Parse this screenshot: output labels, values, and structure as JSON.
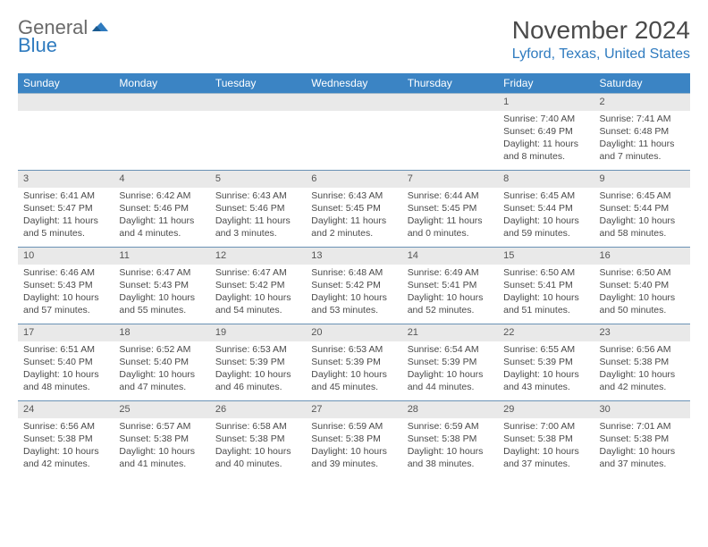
{
  "logo": {
    "general": "General",
    "blue": "Blue"
  },
  "title": "November 2024",
  "subtitle": "Lyford, Texas, United States",
  "colors": {
    "header_bg": "#3b84c4",
    "header_text": "#ffffff",
    "brand_blue": "#2f7bbf",
    "daynum_bg": "#e9e9e9",
    "border": "#6a92b5",
    "text": "#4a4a4a"
  },
  "day_headers": [
    "Sunday",
    "Monday",
    "Tuesday",
    "Wednesday",
    "Thursday",
    "Friday",
    "Saturday"
  ],
  "weeks": [
    [
      {
        "empty": true
      },
      {
        "empty": true
      },
      {
        "empty": true
      },
      {
        "empty": true
      },
      {
        "empty": true
      },
      {
        "num": "1",
        "sunrise": "Sunrise: 7:40 AM",
        "sunset": "Sunset: 6:49 PM",
        "daylight": "Daylight: 11 hours and 8 minutes."
      },
      {
        "num": "2",
        "sunrise": "Sunrise: 7:41 AM",
        "sunset": "Sunset: 6:48 PM",
        "daylight": "Daylight: 11 hours and 7 minutes."
      }
    ],
    [
      {
        "num": "3",
        "sunrise": "Sunrise: 6:41 AM",
        "sunset": "Sunset: 5:47 PM",
        "daylight": "Daylight: 11 hours and 5 minutes."
      },
      {
        "num": "4",
        "sunrise": "Sunrise: 6:42 AM",
        "sunset": "Sunset: 5:46 PM",
        "daylight": "Daylight: 11 hours and 4 minutes."
      },
      {
        "num": "5",
        "sunrise": "Sunrise: 6:43 AM",
        "sunset": "Sunset: 5:46 PM",
        "daylight": "Daylight: 11 hours and 3 minutes."
      },
      {
        "num": "6",
        "sunrise": "Sunrise: 6:43 AM",
        "sunset": "Sunset: 5:45 PM",
        "daylight": "Daylight: 11 hours and 2 minutes."
      },
      {
        "num": "7",
        "sunrise": "Sunrise: 6:44 AM",
        "sunset": "Sunset: 5:45 PM",
        "daylight": "Daylight: 11 hours and 0 minutes."
      },
      {
        "num": "8",
        "sunrise": "Sunrise: 6:45 AM",
        "sunset": "Sunset: 5:44 PM",
        "daylight": "Daylight: 10 hours and 59 minutes."
      },
      {
        "num": "9",
        "sunrise": "Sunrise: 6:45 AM",
        "sunset": "Sunset: 5:44 PM",
        "daylight": "Daylight: 10 hours and 58 minutes."
      }
    ],
    [
      {
        "num": "10",
        "sunrise": "Sunrise: 6:46 AM",
        "sunset": "Sunset: 5:43 PM",
        "daylight": "Daylight: 10 hours and 57 minutes."
      },
      {
        "num": "11",
        "sunrise": "Sunrise: 6:47 AM",
        "sunset": "Sunset: 5:43 PM",
        "daylight": "Daylight: 10 hours and 55 minutes."
      },
      {
        "num": "12",
        "sunrise": "Sunrise: 6:47 AM",
        "sunset": "Sunset: 5:42 PM",
        "daylight": "Daylight: 10 hours and 54 minutes."
      },
      {
        "num": "13",
        "sunrise": "Sunrise: 6:48 AM",
        "sunset": "Sunset: 5:42 PM",
        "daylight": "Daylight: 10 hours and 53 minutes."
      },
      {
        "num": "14",
        "sunrise": "Sunrise: 6:49 AM",
        "sunset": "Sunset: 5:41 PM",
        "daylight": "Daylight: 10 hours and 52 minutes."
      },
      {
        "num": "15",
        "sunrise": "Sunrise: 6:50 AM",
        "sunset": "Sunset: 5:41 PM",
        "daylight": "Daylight: 10 hours and 51 minutes."
      },
      {
        "num": "16",
        "sunrise": "Sunrise: 6:50 AM",
        "sunset": "Sunset: 5:40 PM",
        "daylight": "Daylight: 10 hours and 50 minutes."
      }
    ],
    [
      {
        "num": "17",
        "sunrise": "Sunrise: 6:51 AM",
        "sunset": "Sunset: 5:40 PM",
        "daylight": "Daylight: 10 hours and 48 minutes."
      },
      {
        "num": "18",
        "sunrise": "Sunrise: 6:52 AM",
        "sunset": "Sunset: 5:40 PM",
        "daylight": "Daylight: 10 hours and 47 minutes."
      },
      {
        "num": "19",
        "sunrise": "Sunrise: 6:53 AM",
        "sunset": "Sunset: 5:39 PM",
        "daylight": "Daylight: 10 hours and 46 minutes."
      },
      {
        "num": "20",
        "sunrise": "Sunrise: 6:53 AM",
        "sunset": "Sunset: 5:39 PM",
        "daylight": "Daylight: 10 hours and 45 minutes."
      },
      {
        "num": "21",
        "sunrise": "Sunrise: 6:54 AM",
        "sunset": "Sunset: 5:39 PM",
        "daylight": "Daylight: 10 hours and 44 minutes."
      },
      {
        "num": "22",
        "sunrise": "Sunrise: 6:55 AM",
        "sunset": "Sunset: 5:39 PM",
        "daylight": "Daylight: 10 hours and 43 minutes."
      },
      {
        "num": "23",
        "sunrise": "Sunrise: 6:56 AM",
        "sunset": "Sunset: 5:38 PM",
        "daylight": "Daylight: 10 hours and 42 minutes."
      }
    ],
    [
      {
        "num": "24",
        "sunrise": "Sunrise: 6:56 AM",
        "sunset": "Sunset: 5:38 PM",
        "daylight": "Daylight: 10 hours and 42 minutes."
      },
      {
        "num": "25",
        "sunrise": "Sunrise: 6:57 AM",
        "sunset": "Sunset: 5:38 PM",
        "daylight": "Daylight: 10 hours and 41 minutes."
      },
      {
        "num": "26",
        "sunrise": "Sunrise: 6:58 AM",
        "sunset": "Sunset: 5:38 PM",
        "daylight": "Daylight: 10 hours and 40 minutes."
      },
      {
        "num": "27",
        "sunrise": "Sunrise: 6:59 AM",
        "sunset": "Sunset: 5:38 PM",
        "daylight": "Daylight: 10 hours and 39 minutes."
      },
      {
        "num": "28",
        "sunrise": "Sunrise: 6:59 AM",
        "sunset": "Sunset: 5:38 PM",
        "daylight": "Daylight: 10 hours and 38 minutes."
      },
      {
        "num": "29",
        "sunrise": "Sunrise: 7:00 AM",
        "sunset": "Sunset: 5:38 PM",
        "daylight": "Daylight: 10 hours and 37 minutes."
      },
      {
        "num": "30",
        "sunrise": "Sunrise: 7:01 AM",
        "sunset": "Sunset: 5:38 PM",
        "daylight": "Daylight: 10 hours and 37 minutes."
      }
    ]
  ]
}
